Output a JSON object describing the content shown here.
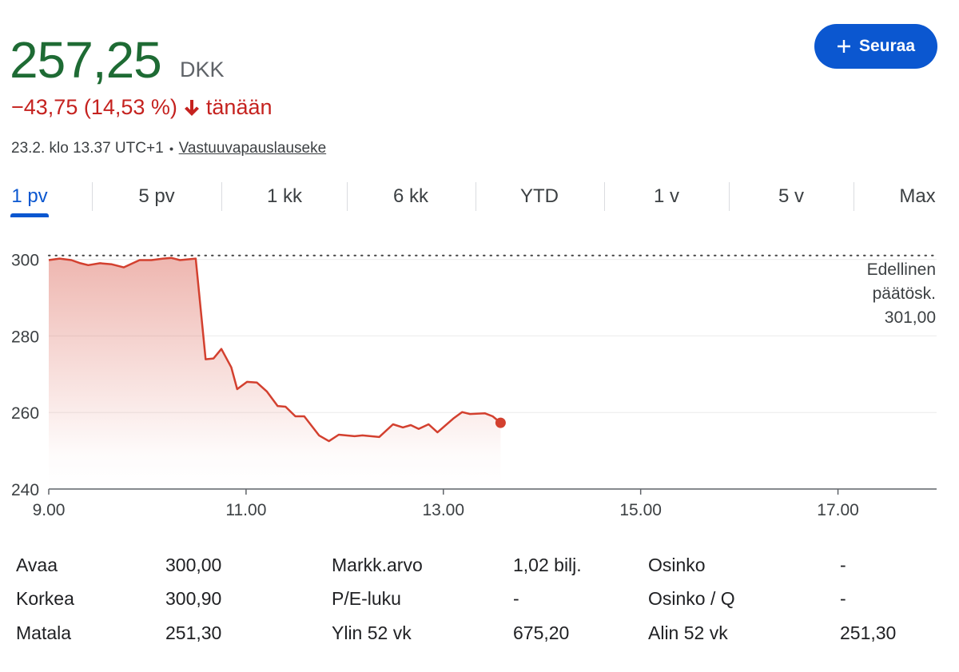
{
  "header": {
    "price": "257,25",
    "currency": "DKK",
    "change": "−43,75 (14,53 %)",
    "period": "tänään",
    "timestamp": "23.2. klo 13.37 UTC+1",
    "disclaimer": "Vastuuvapauslauseke",
    "follow_button": "Seuraa"
  },
  "tabs": {
    "items": [
      "1 pv",
      "5 pv",
      "1 kk",
      "6 kk",
      "YTD",
      "1 v",
      "5 v",
      "Max"
    ],
    "selected": 0
  },
  "chart_data": {
    "type": "line",
    "x": [
      9.0,
      9.11,
      9.23,
      9.32,
      9.4,
      9.52,
      9.64,
      9.76,
      9.92,
      10.04,
      10.16,
      10.24,
      10.33,
      10.49,
      10.59,
      10.67,
      10.75,
      10.85,
      10.91,
      11.01,
      11.11,
      11.21,
      11.32,
      11.4,
      11.5,
      11.59,
      11.74,
      11.84,
      11.94,
      12.1,
      12.18,
      12.35,
      12.49,
      12.59,
      12.67,
      12.75,
      12.85,
      12.94,
      13.1,
      13.19,
      13.27,
      13.42,
      13.5,
      13.58
    ],
    "series": [
      {
        "color": "#d3402f",
        "values": [
          299.8,
          300.2,
          299.8,
          299.0,
          298.5,
          299.0,
          298.7,
          297.9,
          299.8,
          299.8,
          300.2,
          300.4,
          299.8,
          300.2,
          273.9,
          274.1,
          276.6,
          271.8,
          266.1,
          268.0,
          267.8,
          265.5,
          261.7,
          261.5,
          259.0,
          259.0,
          254.0,
          252.5,
          254.2,
          253.8,
          254.0,
          253.6,
          256.9,
          256.1,
          256.7,
          255.7,
          256.9,
          254.8,
          258.4,
          260.1,
          259.6,
          259.8,
          259.0,
          257.3
        ]
      }
    ],
    "xlim": [
      9,
      18
    ],
    "xticks": [
      {
        "value": 9,
        "label": "9.00"
      },
      {
        "value": 11,
        "label": "11.00"
      },
      {
        "value": 13,
        "label": "13.00"
      },
      {
        "value": 15,
        "label": "15.00"
      },
      {
        "value": 17,
        "label": "17.00"
      }
    ],
    "ylim": [
      240,
      302
    ],
    "yticks": [
      240,
      260,
      280,
      300
    ],
    "grid": true,
    "previous_close": {
      "value": 301,
      "label": "301,00"
    },
    "previous_close_annotation": [
      "Edellinen",
      "päätösk."
    ]
  },
  "stats": {
    "rows": [
      [
        "Avaa",
        "300,00",
        "Markk.arvo",
        "1,02 bilj.",
        "Osinko",
        "-"
      ],
      [
        "Korkea",
        "300,90",
        "P/E-luku",
        "-",
        "Osinko / Q",
        "-"
      ],
      [
        "Matala",
        "251,30",
        "Ylin 52 vk",
        "675,20",
        "Alin 52 vk",
        "251,30"
      ]
    ]
  }
}
